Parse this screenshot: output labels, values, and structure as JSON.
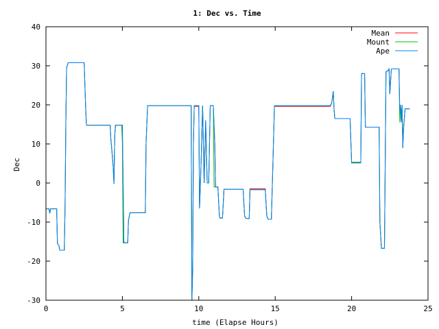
{
  "chart_data": {
    "type": "line",
    "title": "1: Dec vs. Time",
    "xlabel": "time (Elapse Hours)",
    "ylabel": "Dec",
    "xlim": [
      0,
      25
    ],
    "ylim": [
      -30,
      40
    ],
    "xticks": [
      0,
      5,
      10,
      15,
      20,
      25
    ],
    "yticks": [
      -30,
      -20,
      -10,
      0,
      10,
      20,
      30,
      40
    ],
    "grid": false,
    "legend": "top-right",
    "series": [
      {
        "name": "Mean",
        "color": "#ff0000",
        "points": [
          [
            0.0,
            -6.6
          ],
          [
            0.2,
            -6.6
          ],
          [
            0.25,
            -7.8
          ],
          [
            0.3,
            -6.6
          ],
          [
            0.7,
            -6.6
          ],
          [
            0.75,
            -15.5
          ],
          [
            0.85,
            -16.0
          ],
          [
            0.9,
            -17.2
          ],
          [
            1.2,
            -17.2
          ],
          [
            1.25,
            -6
          ],
          [
            1.3,
            15
          ],
          [
            1.35,
            29.5
          ],
          [
            1.45,
            30.8
          ],
          [
            2.5,
            30.8
          ],
          [
            2.55,
            25
          ],
          [
            2.6,
            19
          ],
          [
            2.65,
            14.8
          ],
          [
            4.1,
            14.8
          ],
          [
            4.2,
            14.8
          ],
          [
            4.25,
            11
          ],
          [
            4.3,
            9
          ],
          [
            4.4,
            4
          ],
          [
            4.45,
            -0.2
          ],
          [
            4.5,
            12
          ],
          [
            4.55,
            14.8
          ],
          [
            5.0,
            14.8
          ],
          [
            5.05,
            0
          ],
          [
            5.1,
            -15.3
          ],
          [
            5.35,
            -15.3
          ],
          [
            5.4,
            -9.5
          ],
          [
            5.5,
            -7.6
          ],
          [
            6.5,
            -7.6
          ],
          [
            6.55,
            10
          ],
          [
            6.65,
            19.8
          ],
          [
            9.5,
            19.8
          ],
          [
            9.55,
            -30
          ],
          [
            9.6,
            -22
          ],
          [
            9.65,
            10
          ],
          [
            9.7,
            19.6
          ],
          [
            10.0,
            19.6
          ],
          [
            10.05,
            -6.5
          ],
          [
            10.15,
            5
          ],
          [
            10.25,
            19.8
          ],
          [
            10.35,
            0
          ],
          [
            10.45,
            16
          ],
          [
            10.55,
            0
          ],
          [
            10.65,
            0
          ],
          [
            10.75,
            19.8
          ],
          [
            10.95,
            19.8
          ],
          [
            11.05,
            10
          ],
          [
            11.1,
            -1
          ],
          [
            11.25,
            -1
          ],
          [
            11.35,
            -8.5
          ],
          [
            11.4,
            -9
          ],
          [
            11.55,
            -9
          ],
          [
            11.65,
            -1.6
          ],
          [
            12.9,
            -1.6
          ],
          [
            13.0,
            -8.5
          ],
          [
            13.1,
            -9.1
          ],
          [
            13.3,
            -9.1
          ],
          [
            13.35,
            -1.5
          ],
          [
            14.35,
            -1.5
          ],
          [
            14.45,
            -8.5
          ],
          [
            14.55,
            -9.3
          ],
          [
            14.75,
            -9.3
          ],
          [
            14.85,
            5
          ],
          [
            14.95,
            19.6
          ],
          [
            18.6,
            19.6
          ],
          [
            18.7,
            20.5
          ],
          [
            18.8,
            23.5
          ],
          [
            18.85,
            19
          ],
          [
            18.9,
            16.5
          ],
          [
            19.9,
            16.5
          ],
          [
            20.0,
            5.3
          ],
          [
            20.6,
            5.3
          ],
          [
            20.65,
            28
          ],
          [
            20.85,
            28
          ],
          [
            20.9,
            14.3
          ],
          [
            21.8,
            14.3
          ],
          [
            21.85,
            -10
          ],
          [
            21.95,
            -16.7
          ],
          [
            22.15,
            -16.7
          ],
          [
            22.25,
            28.5
          ],
          [
            22.4,
            28.8
          ],
          [
            22.45,
            29.3
          ],
          [
            22.5,
            22.8
          ],
          [
            22.6,
            29.2
          ],
          [
            23.1,
            29.2
          ],
          [
            23.15,
            18.5
          ],
          [
            23.2,
            20
          ],
          [
            23.25,
            15.5
          ],
          [
            23.3,
            20
          ],
          [
            23.35,
            9
          ],
          [
            23.4,
            14
          ],
          [
            23.5,
            19
          ],
          [
            23.8,
            19
          ]
        ]
      },
      {
        "name": "Mount",
        "color": "#00c000",
        "points": [
          [
            0.0,
            -6.6
          ],
          [
            0.2,
            -6.6
          ],
          [
            0.25,
            -7.8
          ],
          [
            0.3,
            -6.6
          ],
          [
            0.7,
            -6.6
          ],
          [
            0.75,
            -15.5
          ],
          [
            0.85,
            -16.0
          ],
          [
            0.9,
            -17.2
          ],
          [
            1.2,
            -17.2
          ],
          [
            1.25,
            -6
          ],
          [
            1.3,
            15
          ],
          [
            1.35,
            29.5
          ],
          [
            1.45,
            30.8
          ],
          [
            2.5,
            30.8
          ],
          [
            2.55,
            25
          ],
          [
            2.6,
            19
          ],
          [
            2.65,
            14.8
          ],
          [
            4.1,
            14.8
          ],
          [
            4.2,
            14.8
          ],
          [
            4.25,
            11
          ],
          [
            4.3,
            9
          ],
          [
            4.4,
            4
          ],
          [
            4.45,
            -0.2
          ],
          [
            4.5,
            12
          ],
          [
            4.55,
            14.8
          ],
          [
            4.95,
            14.8
          ],
          [
            5.0,
            10.5
          ],
          [
            5.05,
            -15.3
          ],
          [
            5.35,
            -15.3
          ],
          [
            5.4,
            -9.5
          ],
          [
            5.5,
            -7.6
          ],
          [
            6.5,
            -7.6
          ],
          [
            6.55,
            10
          ],
          [
            6.65,
            19.8
          ],
          [
            9.5,
            19.8
          ],
          [
            9.55,
            -30
          ],
          [
            9.6,
            -22
          ],
          [
            9.65,
            10
          ],
          [
            9.7,
            19.8
          ],
          [
            10.0,
            19.8
          ],
          [
            10.05,
            -6.5
          ],
          [
            10.15,
            5
          ],
          [
            10.25,
            19.8
          ],
          [
            10.35,
            0
          ],
          [
            10.45,
            16
          ],
          [
            10.55,
            0
          ],
          [
            10.65,
            0
          ],
          [
            10.75,
            19.8
          ],
          [
            10.95,
            19.8
          ],
          [
            11.0,
            -1
          ],
          [
            11.1,
            -1
          ],
          [
            11.25,
            -1
          ],
          [
            11.35,
            -8.5
          ],
          [
            11.4,
            -9
          ],
          [
            11.55,
            -9
          ],
          [
            11.65,
            -1.6
          ],
          [
            12.9,
            -1.6
          ],
          [
            13.0,
            -8.5
          ],
          [
            13.1,
            -9.1
          ],
          [
            13.3,
            -9.1
          ],
          [
            13.35,
            -1.7
          ],
          [
            14.35,
            -1.7
          ],
          [
            14.45,
            -8.5
          ],
          [
            14.55,
            -9.3
          ],
          [
            14.75,
            -9.3
          ],
          [
            14.85,
            5
          ],
          [
            14.95,
            19.8
          ],
          [
            18.6,
            19.8
          ],
          [
            18.7,
            20.5
          ],
          [
            18.8,
            23.5
          ],
          [
            18.85,
            19
          ],
          [
            18.9,
            16.5
          ],
          [
            19.9,
            16.5
          ],
          [
            20.0,
            5.1
          ],
          [
            20.6,
            5.1
          ],
          [
            20.65,
            28
          ],
          [
            20.85,
            28
          ],
          [
            20.9,
            14.3
          ],
          [
            21.8,
            14.3
          ],
          [
            21.85,
            -10
          ],
          [
            21.95,
            -16.7
          ],
          [
            22.15,
            -16.7
          ],
          [
            22.25,
            28.5
          ],
          [
            22.4,
            28.8
          ],
          [
            22.45,
            29.3
          ],
          [
            22.5,
            22.8
          ],
          [
            22.6,
            29.2
          ],
          [
            23.1,
            29.2
          ],
          [
            23.15,
            15.5
          ],
          [
            23.2,
            20
          ],
          [
            23.25,
            15.5
          ],
          [
            23.3,
            20
          ],
          [
            23.35,
            9
          ],
          [
            23.4,
            14
          ],
          [
            23.5,
            19
          ],
          [
            23.8,
            19
          ]
        ]
      },
      {
        "name": "Ape",
        "color": "#0080ff",
        "points": [
          [
            0.0,
            -6.6
          ],
          [
            0.2,
            -6.6
          ],
          [
            0.25,
            -7.8
          ],
          [
            0.3,
            -6.6
          ],
          [
            0.7,
            -6.6
          ],
          [
            0.75,
            -15.5
          ],
          [
            0.85,
            -16.0
          ],
          [
            0.9,
            -17.2
          ],
          [
            1.2,
            -17.2
          ],
          [
            1.25,
            -6
          ],
          [
            1.3,
            15
          ],
          [
            1.35,
            29.5
          ],
          [
            1.45,
            30.8
          ],
          [
            2.5,
            30.8
          ],
          [
            2.55,
            25
          ],
          [
            2.6,
            19
          ],
          [
            2.65,
            14.8
          ],
          [
            4.1,
            14.8
          ],
          [
            4.2,
            14.8
          ],
          [
            4.25,
            11
          ],
          [
            4.3,
            9
          ],
          [
            4.4,
            4
          ],
          [
            4.45,
            -0.2
          ],
          [
            4.5,
            12
          ],
          [
            4.55,
            14.8
          ],
          [
            5.0,
            14.8
          ],
          [
            5.05,
            0
          ],
          [
            5.1,
            -15.3
          ],
          [
            5.35,
            -15.3
          ],
          [
            5.4,
            -9.5
          ],
          [
            5.5,
            -7.6
          ],
          [
            6.5,
            -7.6
          ],
          [
            6.55,
            10
          ],
          [
            6.65,
            19.8
          ],
          [
            9.5,
            19.8
          ],
          [
            9.55,
            -30
          ],
          [
            9.6,
            -22
          ],
          [
            9.65,
            10
          ],
          [
            9.7,
            19.8
          ],
          [
            10.0,
            19.8
          ],
          [
            10.05,
            -6.5
          ],
          [
            10.15,
            5
          ],
          [
            10.25,
            19.8
          ],
          [
            10.35,
            0
          ],
          [
            10.45,
            16
          ],
          [
            10.55,
            0
          ],
          [
            10.65,
            0
          ],
          [
            10.75,
            19.8
          ],
          [
            10.95,
            19.8
          ],
          [
            11.05,
            10
          ],
          [
            11.1,
            -1
          ],
          [
            11.25,
            -1
          ],
          [
            11.35,
            -8.5
          ],
          [
            11.4,
            -9
          ],
          [
            11.55,
            -9
          ],
          [
            11.65,
            -1.6
          ],
          [
            12.9,
            -1.6
          ],
          [
            13.0,
            -8.5
          ],
          [
            13.1,
            -9.1
          ],
          [
            13.3,
            -9.1
          ],
          [
            13.35,
            -1.7
          ],
          [
            14.35,
            -1.7
          ],
          [
            14.45,
            -8.5
          ],
          [
            14.55,
            -9.3
          ],
          [
            14.75,
            -9.3
          ],
          [
            14.85,
            5
          ],
          [
            14.95,
            19.8
          ],
          [
            18.6,
            19.8
          ],
          [
            18.7,
            20.5
          ],
          [
            18.8,
            23.5
          ],
          [
            18.85,
            19
          ],
          [
            18.9,
            16.5
          ],
          [
            19.9,
            16.5
          ],
          [
            20.0,
            5.3
          ],
          [
            20.6,
            5.3
          ],
          [
            20.65,
            28
          ],
          [
            20.85,
            28
          ],
          [
            20.9,
            14.3
          ],
          [
            21.8,
            14.3
          ],
          [
            21.85,
            -10
          ],
          [
            21.95,
            -16.7
          ],
          [
            22.15,
            -16.7
          ],
          [
            22.25,
            28.5
          ],
          [
            22.4,
            28.8
          ],
          [
            22.45,
            29.3
          ],
          [
            22.5,
            22.8
          ],
          [
            22.6,
            29.2
          ],
          [
            23.1,
            29.2
          ],
          [
            23.15,
            18.5
          ],
          [
            23.2,
            20
          ],
          [
            23.25,
            15.5
          ],
          [
            23.3,
            20
          ],
          [
            23.35,
            9
          ],
          [
            23.4,
            14
          ],
          [
            23.5,
            19
          ],
          [
            23.8,
            19
          ]
        ]
      }
    ]
  }
}
